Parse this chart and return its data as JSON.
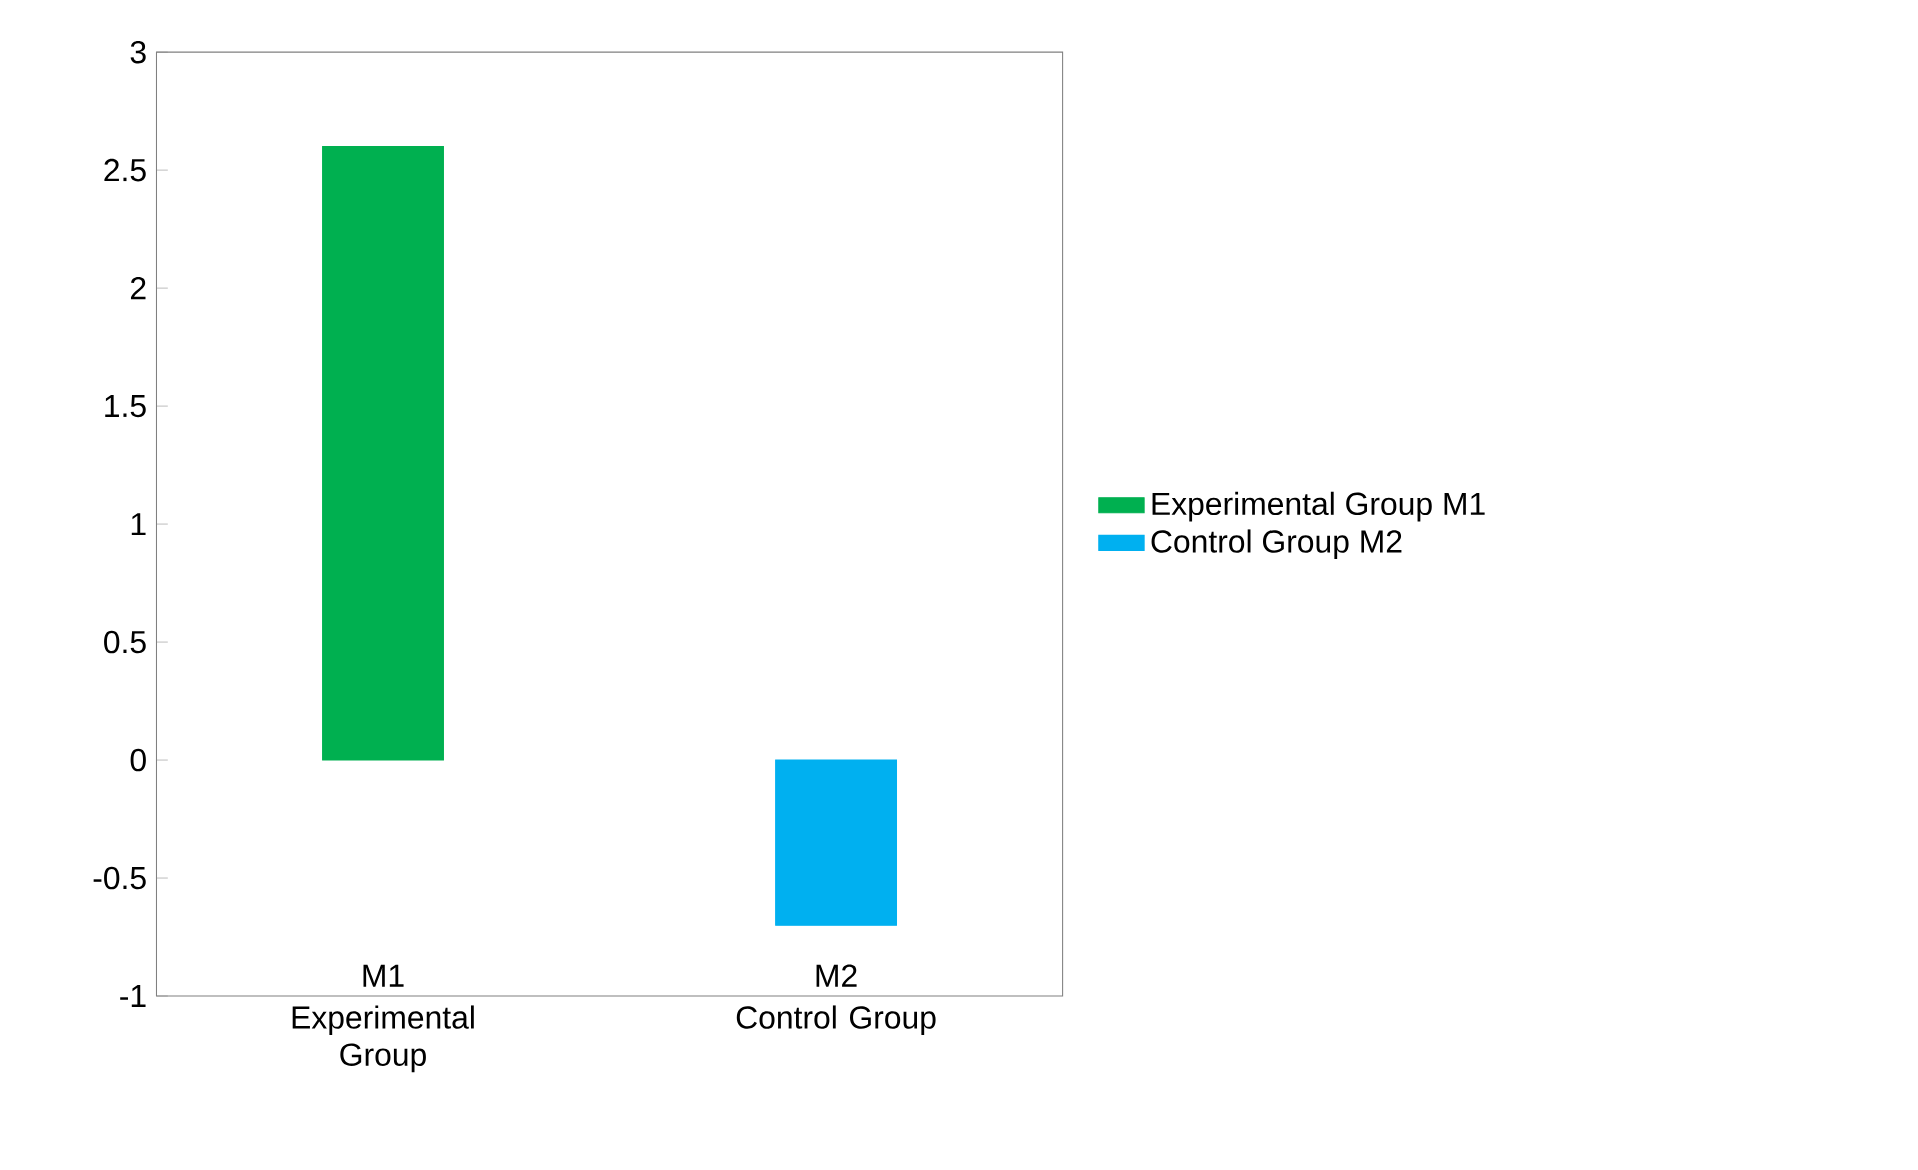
{
  "chart_data": {
    "type": "bar",
    "categories": [
      "Experimental Group",
      "Control Group"
    ],
    "series": [
      {
        "name": "Experimental Group M1",
        "color": "#00b050",
        "values": [
          2.6,
          null
        ]
      },
      {
        "name": "Control Group M2",
        "color": "#00b0f0",
        "values": [
          null,
          -0.7
        ]
      }
    ],
    "ylim": [
      -1,
      3
    ],
    "yticks": [
      -1,
      -0.5,
      0,
      0.5,
      1,
      1.5,
      2,
      2.5,
      3
    ],
    "annotations": [
      "M1",
      "M2"
    ],
    "grid": false,
    "legend": "right"
  }
}
